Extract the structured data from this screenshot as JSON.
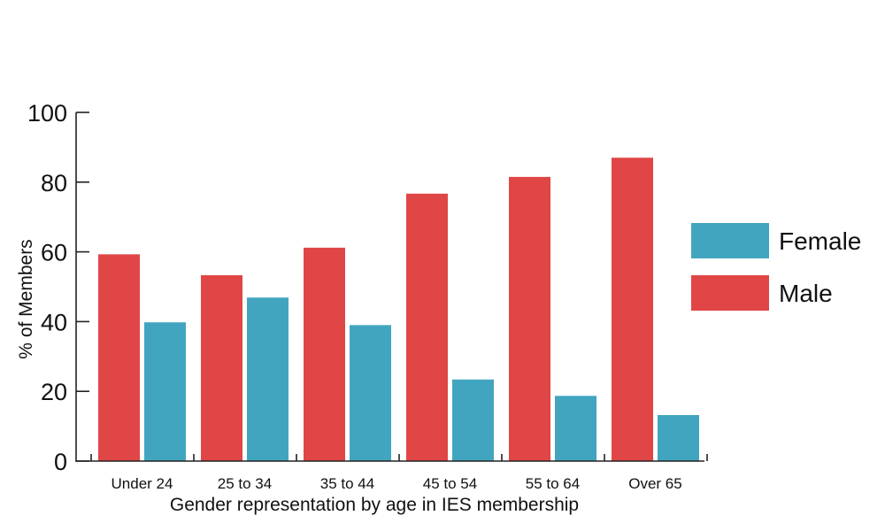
{
  "chart_data": {
    "type": "bar",
    "categories": [
      "Under 24",
      "25 to 34",
      "35 to 44",
      "45 to 54",
      "55 to 64",
      "Over 65"
    ],
    "series": [
      {
        "name": "Male",
        "values": [
          59.3,
          53.3,
          61.2,
          76.7,
          81.5,
          87.0
        ],
        "color": "#e04646"
      },
      {
        "name": "Female",
        "values": [
          39.8,
          46.9,
          39.0,
          23.4,
          18.7,
          13.2
        ],
        "color": "#42a5bf"
      }
    ],
    "title": "",
    "xlabel": "Gender representation by age in IES membership",
    "ylabel": "% of Members",
    "ylim": [
      0,
      100
    ],
    "yticks": [
      0,
      20,
      40,
      60,
      80,
      100
    ],
    "grid": false,
    "legend": {
      "position": "right",
      "order": [
        "Female",
        "Male"
      ]
    }
  }
}
